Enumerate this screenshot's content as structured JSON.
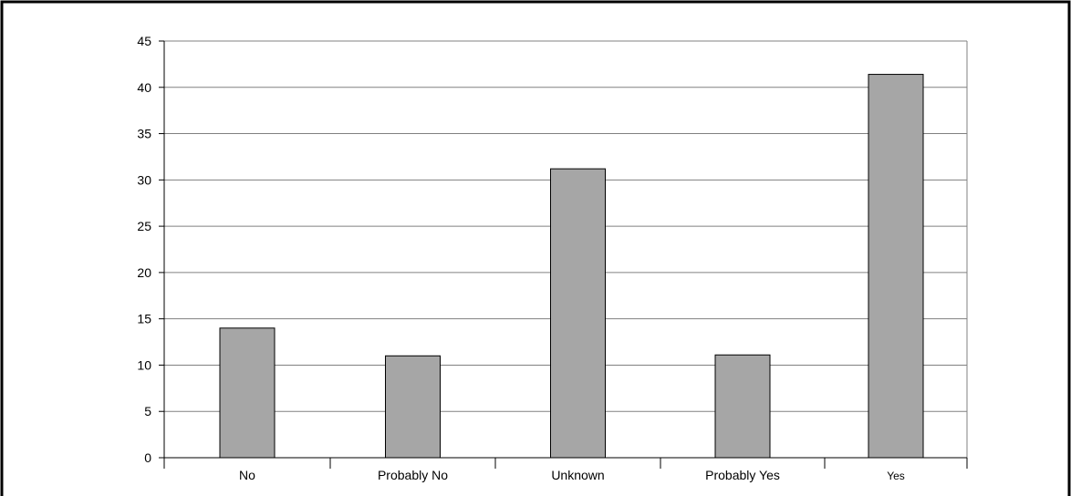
{
  "chart_data": {
    "type": "bar",
    "title": "",
    "xlabel": "",
    "ylabel": "",
    "categories": [
      "No",
      "Probably No",
      "Unknown",
      "Probably Yes",
      "Yes"
    ],
    "values": [
      14,
      11,
      31.2,
      11.1,
      41.4
    ],
    "ylim": [
      0,
      45
    ],
    "yticks": [
      "0",
      "5",
      "10",
      "15",
      "20",
      "25",
      "30",
      "35",
      "40",
      "45"
    ],
    "grid": true,
    "legend": "none",
    "colors": {
      "bar_fill": "#a6a6a6",
      "bar_stroke": "#000000",
      "grid": "#808080",
      "axis": "#000000",
      "frame": "#000000"
    }
  }
}
